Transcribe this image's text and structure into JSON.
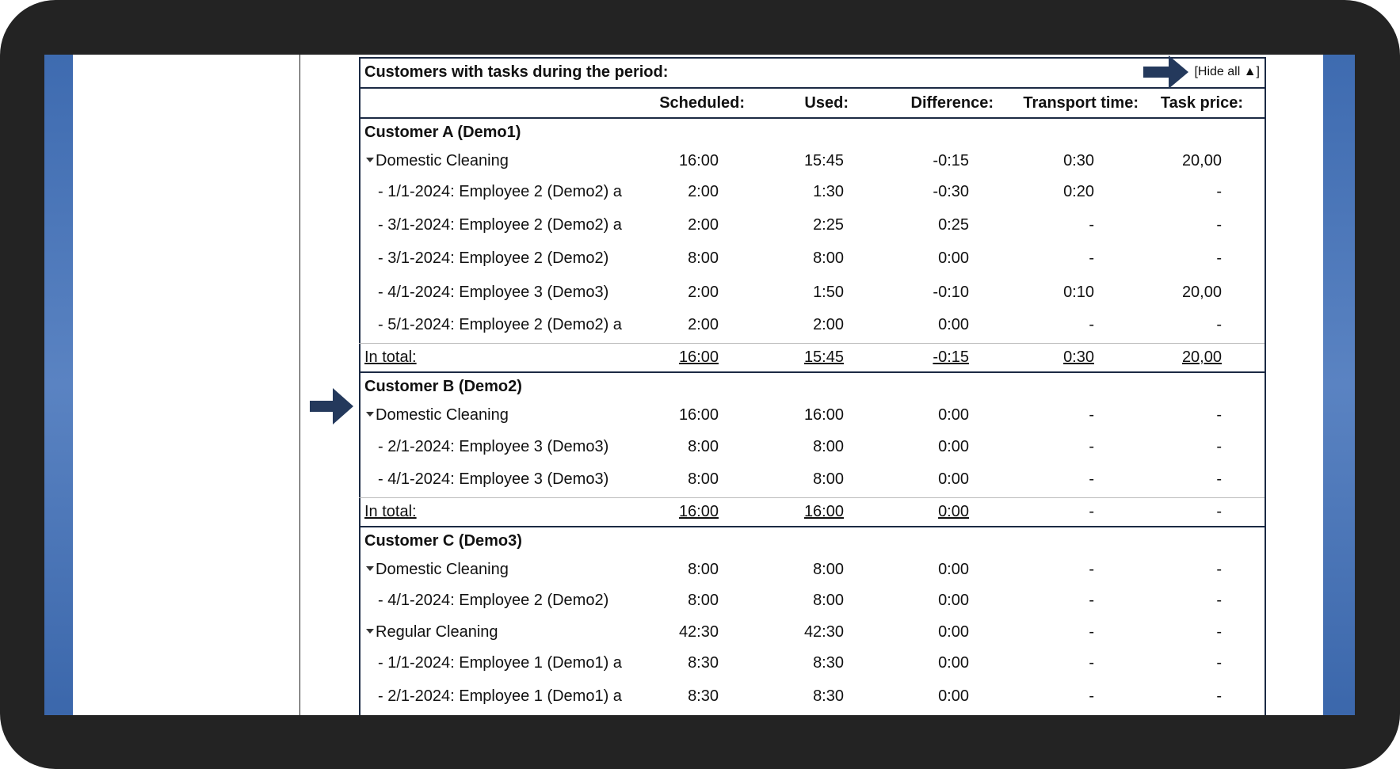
{
  "title": "Customers with tasks during the period:",
  "hide_all": "[Hide all ▲]",
  "headers": [
    "Scheduled:",
    "Used:",
    "Difference:",
    "Transport time:",
    "Task price:"
  ],
  "customers": [
    {
      "name": "Customer A (Demo1)",
      "services": [
        {
          "name": "Domestic Cleaning",
          "values": [
            "16:00",
            "15:45",
            "-0:15",
            "0:30",
            "20,00"
          ],
          "tasks": [
            {
              "label": "- 1/1-2024: Employee 2 (Demo2) a",
              "values": [
                "2:00",
                "1:30",
                "-0:30",
                "0:20",
                "-"
              ]
            },
            {
              "label": "- 3/1-2024: Employee 2 (Demo2) a",
              "values": [
                "2:00",
                "2:25",
                "0:25",
                "-",
                "-"
              ]
            },
            {
              "label": "- 3/1-2024: Employee 2 (Demo2)",
              "values": [
                "8:00",
                "8:00",
                "0:00",
                "-",
                "-"
              ]
            },
            {
              "label": "- 4/1-2024: Employee 3 (Demo3)",
              "values": [
                "2:00",
                "1:50",
                "-0:10",
                "0:10",
                "20,00"
              ]
            },
            {
              "label": "- 5/1-2024: Employee 2 (Demo2) a",
              "values": [
                "2:00",
                "2:00",
                "0:00",
                "-",
                "-"
              ]
            }
          ]
        }
      ],
      "total": {
        "label": "In total:",
        "values": [
          "16:00",
          "15:45",
          "-0:15",
          "0:30",
          "20,00"
        ]
      }
    },
    {
      "name": "Customer B (Demo2)",
      "services": [
        {
          "name": "Domestic Cleaning",
          "values": [
            "16:00",
            "16:00",
            "0:00",
            "-",
            "-"
          ],
          "tasks": [
            {
              "label": "- 2/1-2024: Employee 3 (Demo3)",
              "values": [
                "8:00",
                "8:00",
                "0:00",
                "-",
                "-"
              ]
            },
            {
              "label": "- 4/1-2024: Employee 3 (Demo3)",
              "values": [
                "8:00",
                "8:00",
                "0:00",
                "-",
                "-"
              ]
            }
          ]
        }
      ],
      "total": {
        "label": "In total:",
        "values": [
          "16:00",
          "16:00",
          "0:00",
          "-",
          "-"
        ]
      }
    },
    {
      "name": "Customer C (Demo3)",
      "services": [
        {
          "name": "Domestic Cleaning",
          "values": [
            "8:00",
            "8:00",
            "0:00",
            "-",
            "-"
          ],
          "tasks": [
            {
              "label": "- 4/1-2024: Employee 2 (Demo2)",
              "values": [
                "8:00",
                "8:00",
                "0:00",
                "-",
                "-"
              ]
            }
          ]
        },
        {
          "name": "Regular Cleaning",
          "values": [
            "42:30",
            "42:30",
            "0:00",
            "-",
            "-"
          ],
          "tasks": [
            {
              "label": "- 1/1-2024: Employee 1 (Demo1) a",
              "values": [
                "8:30",
                "8:30",
                "0:00",
                "-",
                "-"
              ]
            },
            {
              "label": "- 2/1-2024: Employee 1 (Demo1) a",
              "values": [
                "8:30",
                "8:30",
                "0:00",
                "-",
                "-"
              ]
            }
          ]
        }
      ]
    }
  ]
}
